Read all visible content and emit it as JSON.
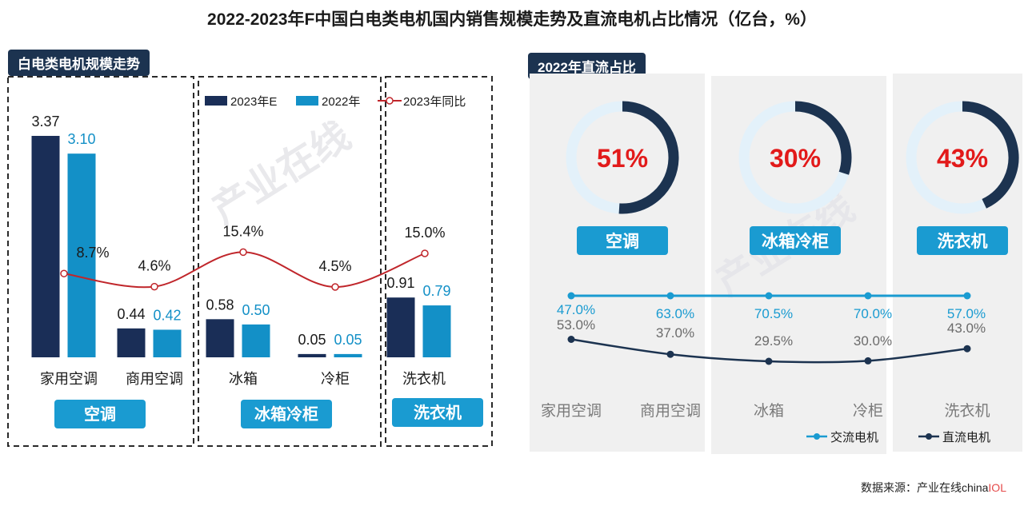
{
  "title": "2022-2023年F中国白电类电机国内销售规模走势及直流电机占比情况（亿台，%）",
  "source": {
    "label": "数据来源：",
    "org": "产业在线",
    "brand_a": "china",
    "brand_b": "IOL"
  },
  "watermark": "产业在线 chinaIOL.com",
  "colors": {
    "dark": "#1a2e57",
    "blue": "#1390c7",
    "red": "#c0262b",
    "teal": "#1a9bd1",
    "navy": "#1c3350",
    "pct": "#e21a1a",
    "gray": "#6b6b6b"
  },
  "chart_data": [
    {
      "type": "bar",
      "tag": "白电类电机规模走势",
      "categories": [
        "家用空调",
        "商用空调",
        "冰箱",
        "冷柜",
        "洗衣机"
      ],
      "groups": [
        "空调",
        "冰箱冷柜",
        "洗衣机"
      ],
      "series": [
        {
          "name": "2023年E",
          "values": [
            3.37,
            0.44,
            0.58,
            0.05,
            0.91
          ],
          "labels": [
            "3.37",
            "0.44",
            "0.58",
            "0.05",
            "0.91"
          ]
        },
        {
          "name": "2022年",
          "values": [
            3.1,
            0.42,
            0.5,
            0.05,
            0.79
          ],
          "labels": [
            "3.10",
            "0.42",
            "0.50",
            "0.05",
            "0.79"
          ]
        }
      ],
      "line": {
        "name": "2023年同比",
        "values": [
          8.7,
          4.6,
          15.4,
          4.5,
          15.0
        ],
        "labels": [
          "8.7%",
          "4.6%",
          "15.4%",
          "4.5%",
          "15.0%"
        ]
      }
    },
    {
      "type": "pie",
      "tag": "2022年直流占比",
      "items": [
        {
          "label": "空调",
          "value": 51,
          "text": "51%"
        },
        {
          "label": "冰箱冷柜",
          "value": 30,
          "text": "30%"
        },
        {
          "label": "洗衣机",
          "value": 43,
          "text": "43%"
        }
      ]
    },
    {
      "type": "line",
      "categories": [
        "家用空调",
        "商用空调",
        "冰箱",
        "冷柜",
        "洗衣机"
      ],
      "series": [
        {
          "name": "交流电机",
          "values": [
            47.0,
            63.0,
            70.5,
            70.0,
            57.0
          ],
          "labels": [
            "47.0%",
            "63.0%",
            "70.5%",
            "70.0%",
            "57.0%"
          ]
        },
        {
          "name": "直流电机",
          "values": [
            53.0,
            37.0,
            29.5,
            30.0,
            43.0
          ],
          "labels": [
            "53.0%",
            "37.0%",
            "29.5%",
            "30.0%",
            "43.0%"
          ]
        }
      ]
    }
  ]
}
